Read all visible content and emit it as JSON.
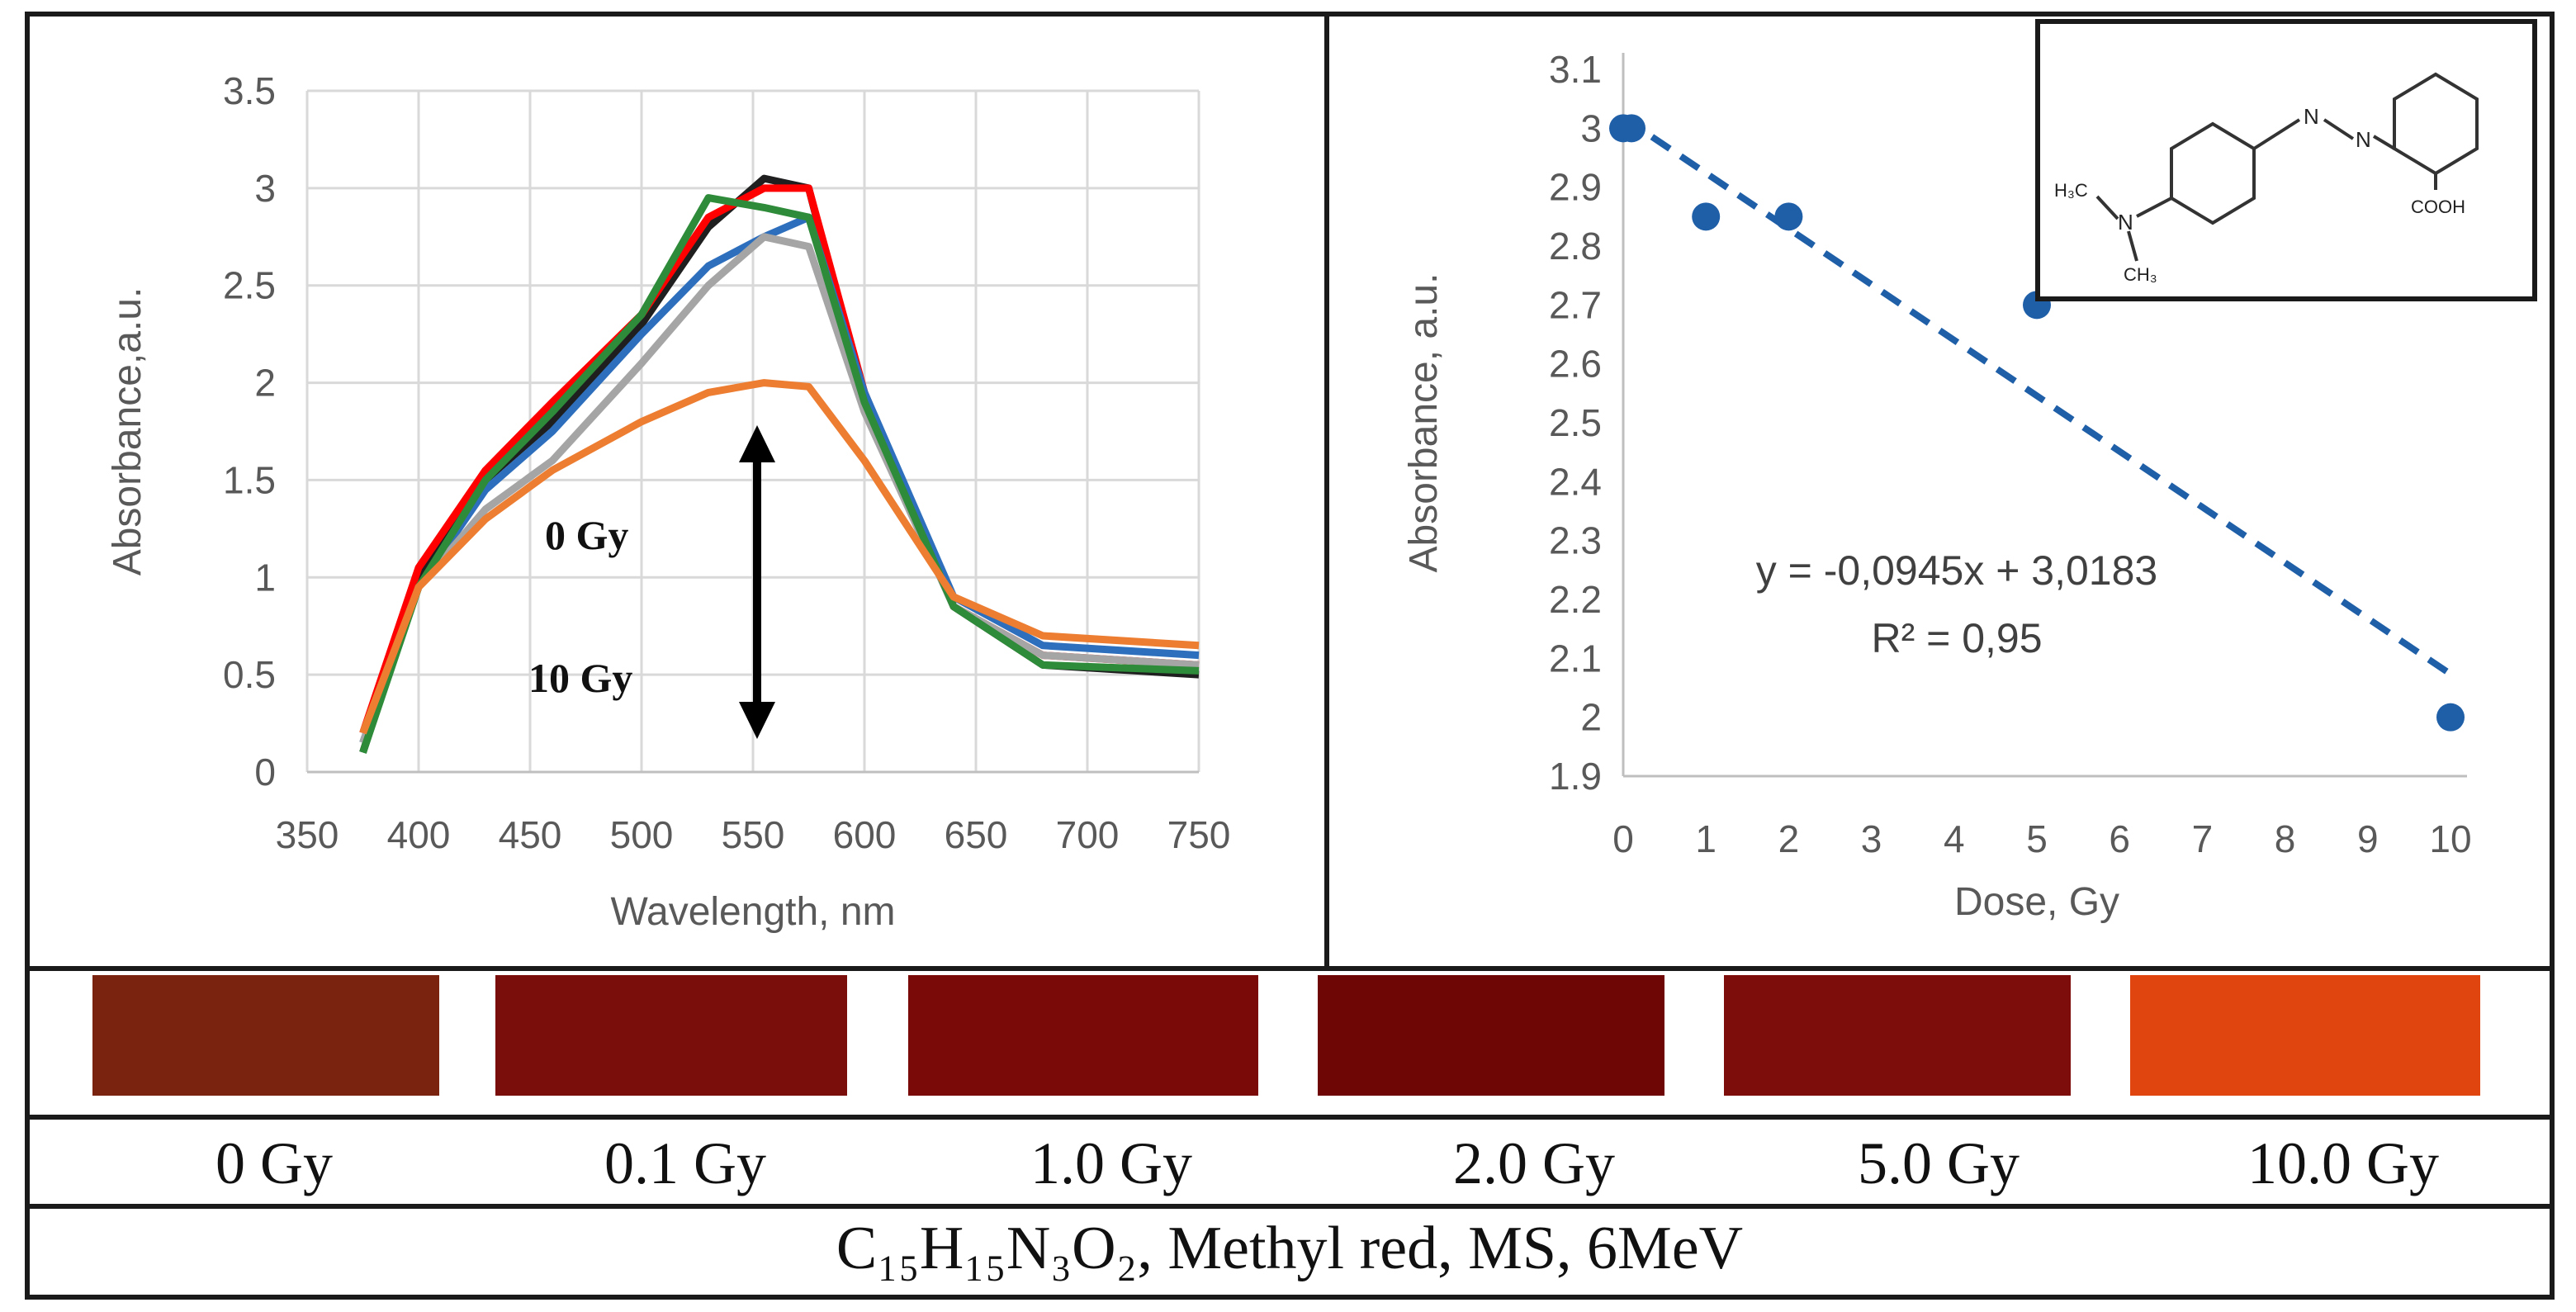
{
  "chart_data": [
    {
      "type": "line",
      "xlabel": "Wavelength, nm",
      "ylabel": "Absorbance,a.u.",
      "xlim": [
        350,
        750
      ],
      "ylim": [
        0,
        3.5
      ],
      "xticks": [
        "350",
        "400",
        "450",
        "500",
        "550",
        "600",
        "650",
        "700",
        "750"
      ],
      "yticks": [
        "0",
        "0.5",
        "1",
        "1.5",
        "2",
        "2.5",
        "3",
        "3.5"
      ],
      "grid": true,
      "annotations": [
        "0 Gy",
        "10 Gy"
      ],
      "series": [
        {
          "color": "#1f1f1f",
          "x": [
            375,
            400,
            430,
            460,
            500,
            530,
            555,
            575,
            600,
            640,
            680,
            750
          ],
          "y": [
            0.1,
            1.0,
            1.5,
            1.8,
            2.3,
            2.8,
            3.05,
            3.0,
            1.9,
            0.85,
            0.55,
            0.5
          ]
        },
        {
          "color": "#ff0000",
          "x": [
            375,
            400,
            430,
            460,
            500,
            530,
            555,
            575,
            600,
            640,
            680,
            750
          ],
          "y": [
            0.2,
            1.05,
            1.55,
            1.9,
            2.35,
            2.85,
            3.0,
            3.0,
            1.95,
            0.85,
            0.6,
            0.55
          ]
        },
        {
          "color": "#2e6fbd",
          "x": [
            375,
            400,
            430,
            460,
            500,
            530,
            555,
            575,
            600,
            640,
            680,
            750
          ],
          "y": [
            0.15,
            0.95,
            1.45,
            1.75,
            2.25,
            2.6,
            2.75,
            2.85,
            1.95,
            0.9,
            0.65,
            0.6
          ]
        },
        {
          "color": "#a5a5a5",
          "x": [
            375,
            400,
            430,
            460,
            500,
            530,
            555,
            575,
            600,
            640,
            680,
            750
          ],
          "y": [
            0.15,
            0.95,
            1.35,
            1.6,
            2.1,
            2.5,
            2.75,
            2.7,
            1.85,
            0.85,
            0.6,
            0.55
          ]
        },
        {
          "color": "#2e8b3a",
          "x": [
            375,
            400,
            430,
            460,
            500,
            530,
            555,
            575,
            600,
            640,
            680,
            750
          ],
          "y": [
            0.1,
            0.95,
            1.5,
            1.85,
            2.35,
            2.95,
            2.9,
            2.85,
            1.9,
            0.85,
            0.55,
            0.52
          ]
        },
        {
          "color": "#ed7d31",
          "x": [
            375,
            400,
            430,
            460,
            500,
            530,
            555,
            575,
            600,
            640,
            680,
            750
          ],
          "y": [
            0.2,
            0.95,
            1.3,
            1.55,
            1.8,
            1.95,
            2.0,
            1.98,
            1.6,
            0.9,
            0.7,
            0.65
          ]
        }
      ]
    },
    {
      "type": "scatter",
      "xlabel": "Dose, Gy",
      "ylabel": "Absorbance, a.u.",
      "xlim": [
        0,
        10
      ],
      "ylim": [
        1.9,
        3.1
      ],
      "xticks": [
        "0",
        "1",
        "2",
        "3",
        "4",
        "5",
        "6",
        "7",
        "8",
        "9",
        "10"
      ],
      "yticks": [
        "1.9",
        "2",
        "2.1",
        "2.2",
        "2.3",
        "2.4",
        "2.5",
        "2.6",
        "2.7",
        "2.8",
        "2.9",
        "3",
        "3.1"
      ],
      "grid": false,
      "points": {
        "x": [
          0,
          0.1,
          1,
          2,
          5,
          10
        ],
        "y": [
          3.0,
          3.0,
          2.85,
          2.85,
          2.7,
          2.0
        ]
      },
      "trendline": {
        "slope": -0.0945,
        "intercept": 3.0183,
        "x": [
          0,
          10
        ]
      },
      "equation": "y = -0,0945x + 3,0183",
      "r2": "R² = 0,95",
      "point_color": "#1f5fa8",
      "trend_color": "#1f5fa8"
    }
  ],
  "samples": [
    {
      "label": "0 Gy",
      "color": "#7a2410"
    },
    {
      "label": "0.1 Gy",
      "color": "#7a0e0a"
    },
    {
      "label": "1.0 Gy",
      "color": "#7a0a08"
    },
    {
      "label": "2.0 Gy",
      "color": "#6e0606"
    },
    {
      "label": "5.0 Gy",
      "color": "#7c0d0b"
    },
    {
      "label": "10.0 Gy",
      "color": "#e0450f"
    }
  ],
  "molecule": {
    "labels": [
      "N",
      "N",
      "N",
      "H₃C",
      "CH₃",
      "COOH"
    ]
  },
  "caption": "C₁₅H₁₅N₃O₂, Methyl red, MS, 6MeV"
}
